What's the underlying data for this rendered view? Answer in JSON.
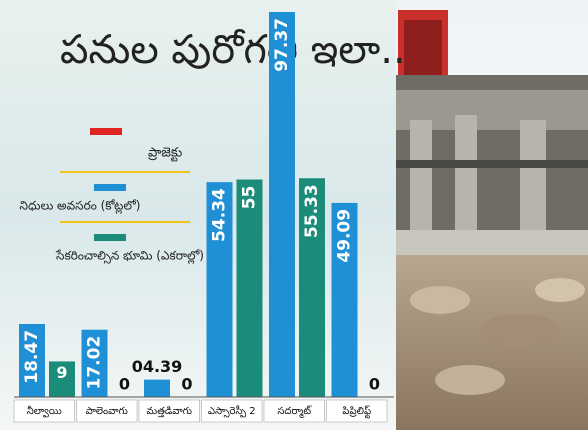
{
  "chart_data": {
    "type": "bar",
    "title": "పనుల పురోగతి ఇలా..",
    "legend_label": "ప్రాజెక్టు",
    "legend_color": "#e02424",
    "categories": [
      "నీల్వాయి",
      "పాలెంవాగు",
      "మత్తడివాగు",
      "ఎస్సారెస్పీ 2",
      "సదర్మాట్",
      "పిప్రిలిఫ్ట్"
    ],
    "series": [
      {
        "name": "నిధులు అవసరం (కోట్లలో)",
        "color": "#1f8fd6",
        "values": [
          18.47,
          17.02,
          4.39,
          54.34,
          97.37,
          49.09
        ],
        "value_labels": [
          "18.47",
          "17.02",
          "04.39",
          "54.34",
          "97.37",
          "49.09"
        ]
      },
      {
        "name": "సేకరించాల్సిన భూమి (ఎకరాల్లో)",
        "color": "#1c8c7a",
        "values": [
          9,
          0,
          0,
          55,
          55.33,
          0
        ]
      }
    ]
  }
}
